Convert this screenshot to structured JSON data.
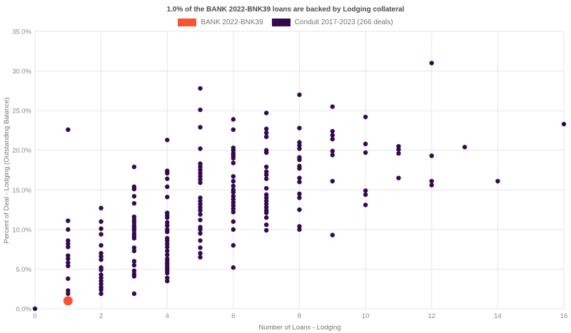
{
  "title": "1.0% of the BANK 2022-BNK39 loans are backed by Lodging collateral",
  "legend": [
    {
      "label": "BANK 2022-BNK39",
      "color": "#fa5332"
    },
    {
      "label": "Conduit 2017-2023 (266 deals)",
      "color": "#35094e"
    }
  ],
  "chart_data": {
    "type": "scatter",
    "title": "1.0% of the BANK 2022-BNK39 loans are backed by Lodging collateral",
    "xlabel": "Number of Loans - Lodging",
    "ylabel": "Percent of Deal - Lodging (Outstanding Balance)",
    "xlim": [
      0,
      16
    ],
    "ylim": [
      0,
      35
    ],
    "x_ticks": [
      0,
      2,
      4,
      6,
      8,
      10,
      12,
      14,
      16
    ],
    "y_ticks": [
      0,
      5,
      10,
      15,
      20,
      25,
      30,
      35
    ],
    "y_tick_format": "percent_1dp",
    "grid": true,
    "legend_position": "top-center",
    "series": [
      {
        "name": "BANK 2022-BNK39",
        "color": "#fa5332",
        "marker_radius": 6.5,
        "points": [
          [
            1,
            1.0
          ]
        ]
      },
      {
        "name": "Conduit 2017-2023 (266 deals)",
        "color": "#35094e",
        "marker_radius": 3.2,
        "points": [
          [
            0,
            0.0
          ],
          [
            1,
            22.6
          ],
          [
            1,
            11.1
          ],
          [
            1,
            10.0
          ],
          [
            1,
            8.6
          ],
          [
            1,
            8.2
          ],
          [
            1,
            7.8
          ],
          [
            1,
            6.7
          ],
          [
            1,
            6.3
          ],
          [
            1,
            5.8
          ],
          [
            1,
            5.4
          ],
          [
            1,
            3.8
          ],
          [
            1,
            2.3
          ],
          [
            1,
            1.9
          ],
          [
            2,
            12.7
          ],
          [
            2,
            11.0
          ],
          [
            2,
            10.1
          ],
          [
            2,
            9.4
          ],
          [
            2,
            8.0
          ],
          [
            2,
            7.0
          ],
          [
            2,
            6.6
          ],
          [
            2,
            6.2
          ],
          [
            2,
            5.2
          ],
          [
            2,
            4.9
          ],
          [
            2,
            4.3
          ],
          [
            2,
            3.9
          ],
          [
            2,
            3.5
          ],
          [
            2,
            3.1
          ],
          [
            2,
            2.7
          ],
          [
            2,
            2.4
          ],
          [
            2,
            1.9
          ],
          [
            3,
            17.9
          ],
          [
            3,
            15.4
          ],
          [
            3,
            15.1
          ],
          [
            3,
            14.2
          ],
          [
            3,
            13.3
          ],
          [
            3,
            11.6
          ],
          [
            3,
            11.2
          ],
          [
            3,
            10.9
          ],
          [
            3,
            10.5
          ],
          [
            3,
            10.2
          ],
          [
            3,
            9.9
          ],
          [
            3,
            9.5
          ],
          [
            3,
            9.2
          ],
          [
            3,
            8.9
          ],
          [
            3,
            7.7
          ],
          [
            3,
            7.3
          ],
          [
            3,
            6.0
          ],
          [
            3,
            5.5
          ],
          [
            3,
            4.8
          ],
          [
            3,
            4.4
          ],
          [
            3,
            4.1
          ],
          [
            3,
            1.9
          ],
          [
            4,
            21.3
          ],
          [
            4,
            17.4
          ],
          [
            4,
            17.1
          ],
          [
            4,
            16.4
          ],
          [
            4,
            15.4
          ],
          [
            4,
            14.1
          ],
          [
            4,
            12.1
          ],
          [
            4,
            11.8
          ],
          [
            4,
            11.5
          ],
          [
            4,
            10.9
          ],
          [
            4,
            10.5
          ],
          [
            4,
            10.0
          ],
          [
            4,
            9.7
          ],
          [
            4,
            8.9
          ],
          [
            4,
            8.6
          ],
          [
            4,
            8.2
          ],
          [
            4,
            7.8
          ],
          [
            4,
            7.3
          ],
          [
            4,
            6.8
          ],
          [
            4,
            6.3
          ],
          [
            4,
            6.0
          ],
          [
            4,
            5.7
          ],
          [
            4,
            5.4
          ],
          [
            4,
            5.1
          ],
          [
            4,
            4.8
          ],
          [
            4,
            4.5
          ],
          [
            4,
            3.9
          ],
          [
            4,
            3.5
          ],
          [
            5,
            27.8
          ],
          [
            5,
            25.1
          ],
          [
            5,
            22.9
          ],
          [
            5,
            20.2
          ],
          [
            5,
            18.3
          ],
          [
            5,
            17.9
          ],
          [
            5,
            17.5
          ],
          [
            5,
            17.1
          ],
          [
            5,
            16.7
          ],
          [
            5,
            16.3
          ],
          [
            5,
            15.9
          ],
          [
            5,
            14.0
          ],
          [
            5,
            13.6
          ],
          [
            5,
            13.2
          ],
          [
            5,
            12.8
          ],
          [
            5,
            12.4
          ],
          [
            5,
            11.9
          ],
          [
            5,
            11.2
          ],
          [
            5,
            10.3
          ],
          [
            5,
            10.0
          ],
          [
            5,
            9.5
          ],
          [
            5,
            8.6
          ],
          [
            5,
            7.7
          ],
          [
            5,
            7.0
          ],
          [
            5,
            6.5
          ],
          [
            6,
            23.9
          ],
          [
            6,
            22.6
          ],
          [
            6,
            20.3
          ],
          [
            6,
            20.0
          ],
          [
            6,
            19.6
          ],
          [
            6,
            19.3
          ],
          [
            6,
            19.0
          ],
          [
            6,
            18.4
          ],
          [
            6,
            16.7
          ],
          [
            6,
            16.1
          ],
          [
            6,
            15.5
          ],
          [
            6,
            15.0
          ],
          [
            6,
            14.7
          ],
          [
            6,
            14.2
          ],
          [
            6,
            13.8
          ],
          [
            6,
            13.4
          ],
          [
            6,
            13.0
          ],
          [
            6,
            12.6
          ],
          [
            6,
            12.2
          ],
          [
            6,
            11.0
          ],
          [
            6,
            10.0
          ],
          [
            6,
            8.0
          ],
          [
            6,
            5.2
          ],
          [
            7,
            24.7
          ],
          [
            7,
            22.7
          ],
          [
            7,
            22.2
          ],
          [
            7,
            21.7
          ],
          [
            7,
            20.0
          ],
          [
            7,
            19.7
          ],
          [
            7,
            17.9
          ],
          [
            7,
            17.3
          ],
          [
            7,
            16.9
          ],
          [
            7,
            16.4
          ],
          [
            7,
            15.2
          ],
          [
            7,
            14.4
          ],
          [
            7,
            14.0
          ],
          [
            7,
            13.6
          ],
          [
            7,
            13.2
          ],
          [
            7,
            12.8
          ],
          [
            7,
            12.4
          ],
          [
            7,
            12.1
          ],
          [
            7,
            11.5
          ],
          [
            7,
            10.6
          ],
          [
            7,
            9.9
          ],
          [
            8,
            27.0
          ],
          [
            8,
            22.8
          ],
          [
            8,
            21.0
          ],
          [
            8,
            20.6
          ],
          [
            8,
            20.2
          ],
          [
            8,
            19.1
          ],
          [
            8,
            18.8
          ],
          [
            8,
            18.0
          ],
          [
            8,
            17.7
          ],
          [
            8,
            16.5
          ],
          [
            8,
            16.0
          ],
          [
            8,
            14.5
          ],
          [
            8,
            14.0
          ],
          [
            8,
            12.5
          ],
          [
            8,
            10.4
          ],
          [
            8,
            10.0
          ],
          [
            9,
            25.5
          ],
          [
            9,
            22.4
          ],
          [
            9,
            21.9
          ],
          [
            9,
            21.4
          ],
          [
            9,
            19.9
          ],
          [
            9,
            19.4
          ],
          [
            9,
            16.1
          ],
          [
            9,
            9.3
          ],
          [
            10,
            24.2
          ],
          [
            10,
            20.8
          ],
          [
            10,
            19.7
          ],
          [
            10,
            14.9
          ],
          [
            10,
            14.4
          ],
          [
            10,
            13.1
          ],
          [
            11,
            20.5
          ],
          [
            11,
            20.1
          ],
          [
            11,
            19.6
          ],
          [
            11,
            16.5
          ],
          [
            12,
            31.0
          ],
          [
            12,
            19.3
          ],
          [
            12,
            16.1
          ],
          [
            12,
            15.6
          ],
          [
            13,
            20.4
          ],
          [
            14,
            16.1
          ],
          [
            16,
            23.3
          ]
        ]
      }
    ]
  }
}
